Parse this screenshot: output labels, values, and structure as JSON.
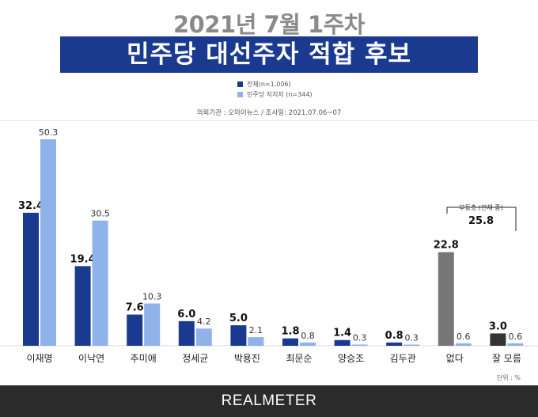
{
  "header": {
    "top_title": "2021년 7월 1주차",
    "banner_title": "민주당 대선주자 적합 후보"
  },
  "legend": {
    "items": [
      {
        "label": "전체(n=1,006)",
        "color": "#1a3a8f"
      },
      {
        "label": "민주당 지지자 (n=344)",
        "color": "#8fb2eb"
      }
    ]
  },
  "source_line": "의뢰기관 : 오마이뉴스   /   조사일: 2021.07.06~07",
  "annotation": {
    "label": "부동층 (전체 중)",
    "value": "25.8"
  },
  "unit_label": "단위 : %",
  "footer": {
    "brand": "REALMETER"
  },
  "chart_data": {
    "type": "bar",
    "title": "민주당 대선주자 적합 후보",
    "categories": [
      "이재명",
      "이낙연",
      "추미애",
      "정세균",
      "박용진",
      "최문순",
      "양승조",
      "김두관",
      "없다",
      "잘 모름"
    ],
    "series": [
      {
        "name": "전체(n=1,006)",
        "values": [
          32.4,
          19.4,
          7.6,
          6.0,
          5.0,
          1.8,
          1.4,
          0.8,
          22.8,
          3.0
        ],
        "labels": [
          "32.4",
          "19.4",
          "7.6",
          "6.0",
          "5.0",
          "1.8",
          "1.4",
          "0.8",
          "22.8",
          "3.0"
        ],
        "color": "#1a3a8f",
        "special_colors": {
          "8": "#777777",
          "9": "#333333"
        }
      },
      {
        "name": "민주당 지지자 (n=344)",
        "values": [
          50.3,
          30.5,
          10.3,
          4.2,
          2.1,
          0.8,
          0.3,
          0.3,
          0.6,
          0.6
        ],
        "labels": [
          "50.3",
          "30.5",
          "10.3",
          "4.2",
          "2.1",
          "0.8",
          "0.3",
          "0.3",
          "0.6",
          "0.6"
        ],
        "color": "#8fb2eb"
      }
    ],
    "ylim": [
      0,
      50.3
    ],
    "grid": false,
    "legend_position": "top-center"
  }
}
